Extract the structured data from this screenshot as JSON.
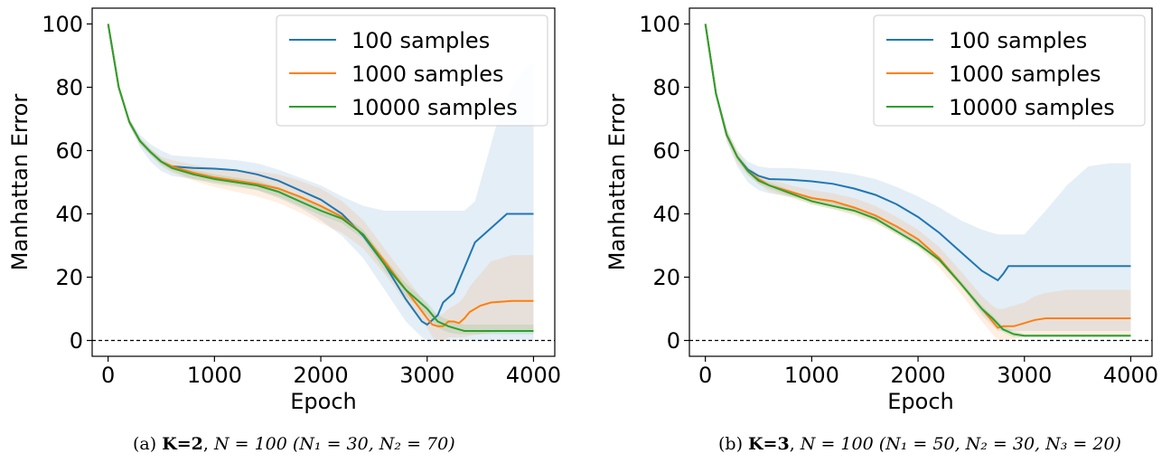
{
  "figures": [
    {
      "caption": {
        "tag": "(a)",
        "k": "K=2",
        "n": "N = 100",
        "groups": "(N₁ = 30, N₂ = 70)"
      }
    },
    {
      "caption": {
        "tag": "(b)",
        "k": "K=3",
        "n": "N = 100",
        "groups": "(N₁ = 50, N₂ = 30, N₃ = 20)"
      }
    }
  ],
  "colors": {
    "blue": "#1f77b4",
    "orange": "#ff7f0e",
    "green": "#2ca02c"
  },
  "chart_data": [
    {
      "type": "line",
      "xlabel": "Epoch",
      "ylabel": "Manhattan Error",
      "xlim": [
        -150,
        4200
      ],
      "ylim": [
        -5,
        105
      ],
      "xticks": [
        0,
        1000,
        2000,
        3000,
        4000
      ],
      "yticks": [
        0,
        20,
        40,
        60,
        80,
        100
      ],
      "reference_line": {
        "y": 0,
        "style": "dashed"
      },
      "legend_position": "top-right",
      "series": [
        {
          "name": "100 samples",
          "color": "#1f77b4",
          "x": [
            0,
            100,
            200,
            300,
            400,
            500,
            600,
            800,
            1000,
            1200,
            1400,
            1600,
            1800,
            2000,
            2200,
            2400,
            2600,
            2800,
            2950,
            3000,
            3100,
            3150,
            3250,
            3350,
            3450,
            3550,
            3650,
            3750,
            3800,
            3900,
            4000
          ],
          "y": [
            100,
            80,
            69,
            63,
            59.5,
            56.5,
            55,
            54.5,
            54.3,
            53.8,
            52.5,
            50.5,
            47.5,
            44.5,
            40,
            33,
            24,
            13,
            6,
            5,
            8,
            12,
            15,
            23,
            31,
            34,
            37,
            40,
            40,
            40,
            40
          ],
          "band_low": [
            100,
            80,
            68,
            61,
            56.5,
            53.5,
            52,
            51,
            50,
            49,
            47.5,
            45,
            42,
            38,
            33,
            26,
            16,
            6,
            1,
            0,
            0,
            0,
            0,
            0,
            0,
            0,
            0,
            0,
            0,
            0,
            0
          ],
          "band_high": [
            100,
            80,
            70,
            65,
            62,
            60,
            58.5,
            58,
            57.5,
            57,
            56,
            54,
            51.5,
            49,
            45.5,
            42.5,
            41,
            41,
            41,
            41,
            41,
            41,
            41,
            41,
            44,
            56,
            68,
            76,
            80,
            85,
            88
          ]
        },
        {
          "name": "1000 samples",
          "color": "#ff7f0e",
          "x": [
            0,
            100,
            200,
            300,
            400,
            500,
            600,
            800,
            1000,
            1200,
            1400,
            1600,
            1800,
            2000,
            2200,
            2400,
            2600,
            2800,
            3000,
            3050,
            3100,
            3150,
            3200,
            3250,
            3300,
            3350,
            3400,
            3500,
            3600,
            3800,
            4000
          ],
          "y": [
            100,
            80,
            69,
            63,
            59.5,
            56.5,
            55,
            53,
            51.5,
            50.5,
            49.5,
            48,
            45.5,
            42.5,
            39,
            33.5,
            25,
            16,
            7,
            5,
            4.5,
            4.5,
            6,
            6,
            5.5,
            7,
            9,
            11,
            12,
            12.5,
            12.5
          ],
          "band_low": [
            100,
            80,
            68,
            62,
            58.5,
            55,
            53,
            50.5,
            48.5,
            47,
            45.5,
            43.5,
            40.5,
            37,
            34,
            29,
            21,
            12,
            4,
            1,
            0,
            0,
            1,
            1,
            1,
            1,
            1.5,
            2,
            2.5,
            3,
            3
          ],
          "band_high": [
            100,
            80,
            70,
            64,
            60.5,
            58,
            57,
            55.5,
            54.5,
            54,
            53.5,
            52.5,
            50.5,
            48,
            44,
            38,
            29,
            20,
            11,
            9,
            8,
            8.5,
            10,
            11,
            12,
            14,
            17,
            21,
            25,
            27,
            27
          ]
        },
        {
          "name": "10000 samples",
          "color": "#2ca02c",
          "x": [
            0,
            100,
            200,
            300,
            400,
            500,
            600,
            800,
            1000,
            1200,
            1400,
            1600,
            1800,
            2000,
            2200,
            2400,
            2600,
            2800,
            3000,
            3100,
            3200,
            3300,
            3350,
            3400,
            3500,
            3600,
            3800,
            4000
          ],
          "y": [
            100,
            80,
            69,
            63,
            59.5,
            56.5,
            54.5,
            52.5,
            51,
            50,
            49,
            47,
            44,
            41,
            38.5,
            33.5,
            24,
            16,
            10,
            6,
            4.5,
            3.5,
            3,
            3,
            3,
            3,
            3,
            3
          ],
          "band_low": [
            100,
            80,
            68,
            62,
            58.5,
            55.5,
            53.5,
            51,
            49.5,
            48.5,
            47.5,
            45.5,
            42.5,
            39.5,
            37,
            32,
            22,
            14,
            8,
            4,
            2.5,
            2,
            2,
            2,
            2,
            2,
            2,
            2
          ],
          "band_high": [
            100,
            80,
            70,
            64,
            60.5,
            57.5,
            55.5,
            54,
            52.5,
            51.5,
            50.5,
            48.5,
            45.5,
            42.5,
            40,
            35,
            26,
            18,
            12,
            8,
            6.5,
            5.5,
            5,
            5,
            5,
            5,
            5,
            5
          ]
        }
      ]
    },
    {
      "type": "line",
      "xlabel": "Epoch",
      "ylabel": "Manhattan Error",
      "xlim": [
        -150,
        4200
      ],
      "ylim": [
        -5,
        105
      ],
      "xticks": [
        0,
        1000,
        2000,
        3000,
        4000
      ],
      "yticks": [
        0,
        20,
        40,
        60,
        80,
        100
      ],
      "reference_line": {
        "y": 0,
        "style": "dashed"
      },
      "legend_position": "top-right",
      "series": [
        {
          "name": "100 samples",
          "color": "#1f77b4",
          "x": [
            0,
            100,
            200,
            300,
            400,
            500,
            600,
            800,
            1000,
            1200,
            1400,
            1600,
            1800,
            2000,
            2200,
            2400,
            2600,
            2750,
            2800,
            2850,
            3000,
            3200,
            3400,
            3600,
            3800,
            4000
          ],
          "y": [
            100,
            78,
            65,
            58,
            54,
            52,
            51,
            50.8,
            50.3,
            49.5,
            48,
            46,
            43,
            39,
            34,
            28,
            22,
            19,
            21,
            23.5,
            23.5,
            23.5,
            23.5,
            23.5,
            23.5,
            23.5
          ],
          "band_low": [
            100,
            77,
            63,
            55,
            50,
            47.5,
            46.5,
            45.5,
            44.5,
            43,
            41,
            38,
            34.5,
            30.5,
            25,
            18,
            8,
            3,
            3,
            3,
            3,
            3,
            3,
            3,
            3,
            3
          ],
          "band_high": [
            100,
            79,
            67,
            60,
            56.5,
            55,
            54.5,
            54.5,
            54,
            53.5,
            52.5,
            51,
            48.5,
            45.5,
            42,
            38,
            35,
            33.5,
            33.5,
            33.5,
            33.5,
            41,
            49,
            55,
            56,
            56
          ]
        },
        {
          "name": "1000 samples",
          "color": "#ff7f0e",
          "x": [
            0,
            100,
            200,
            300,
            400,
            500,
            600,
            800,
            1000,
            1200,
            1400,
            1600,
            1800,
            2000,
            2200,
            2400,
            2600,
            2700,
            2750,
            2800,
            2900,
            3000,
            3100,
            3200,
            3400,
            3600,
            3800,
            4000
          ],
          "y": [
            100,
            78,
            65,
            58,
            53.5,
            51,
            49,
            47,
            45,
            44,
            42,
            39.5,
            36,
            32,
            26,
            18,
            10,
            6,
            4,
            4.5,
            4.5,
            5.5,
            6.5,
            7,
            7,
            7,
            7,
            7
          ],
          "band_low": [
            100,
            77,
            63,
            56,
            52,
            49.5,
            47,
            45,
            43,
            41.5,
            39.5,
            37,
            33.5,
            29.5,
            23,
            15,
            6,
            2,
            0,
            0,
            0.5,
            1,
            1.5,
            1.5,
            1.5,
            1.5,
            1.5,
            1.5
          ],
          "band_high": [
            100,
            79,
            67,
            60,
            55,
            52.5,
            51,
            49,
            47.5,
            46.5,
            45,
            42.5,
            39,
            35,
            29.5,
            22,
            14,
            11,
            10,
            10,
            11,
            12,
            14,
            15,
            16,
            16,
            16,
            16
          ]
        },
        {
          "name": "10000 samples",
          "color": "#2ca02c",
          "x": [
            0,
            100,
            200,
            300,
            400,
            500,
            600,
            800,
            1000,
            1200,
            1400,
            1600,
            1800,
            2000,
            2200,
            2400,
            2600,
            2700,
            2800,
            2900,
            3000,
            3200,
            3400,
            3600,
            3800,
            4000
          ],
          "y": [
            100,
            78,
            65,
            58,
            53.5,
            50.5,
            49,
            46.5,
            44,
            42.5,
            41,
            38.5,
            34.5,
            30.5,
            25.5,
            18,
            10,
            7,
            3.5,
            2,
            1.5,
            1.5,
            1.5,
            1.5,
            1.5,
            1.5
          ],
          "band_low": [
            100,
            77,
            64,
            57,
            52.5,
            49.5,
            48,
            45.5,
            43,
            41.5,
            40,
            37.5,
            33.5,
            29.5,
            24.5,
            17,
            9,
            6,
            2.5,
            1,
            1,
            1,
            1,
            1,
            1,
            1
          ],
          "band_high": [
            100,
            79,
            66,
            59,
            54.5,
            51.5,
            50,
            47.5,
            45,
            43.5,
            42,
            39.5,
            35.5,
            31.5,
            26.5,
            19,
            11,
            8,
            4.5,
            3,
            2,
            2,
            2,
            2,
            2,
            2
          ]
        }
      ]
    }
  ]
}
